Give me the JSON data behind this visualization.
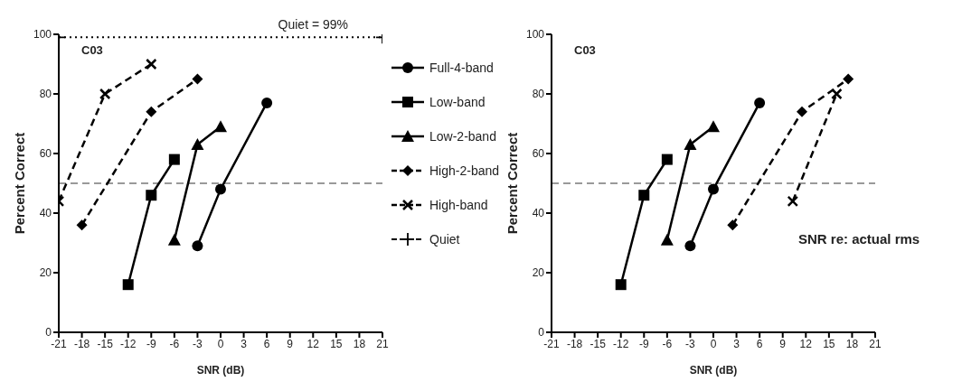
{
  "chart_data": [
    {
      "type": "line",
      "xlabel": "SNR (dB)",
      "ylabel": "Percent Correct",
      "xlim": [
        -21,
        21
      ],
      "xticks": [
        -21,
        -18,
        -15,
        -12,
        -9,
        -6,
        -3,
        0,
        3,
        6,
        9,
        12,
        15,
        18,
        21
      ],
      "ylim": [
        0,
        100
      ],
      "yticks": [
        0,
        20,
        40,
        60,
        80,
        100
      ],
      "legend": "right",
      "annotations": [
        "C03",
        {
          "text": "Quiet = 99%",
          "x": 12,
          "y": 99
        }
      ],
      "ref_lines": [
        {
          "axis": "y",
          "value": 50,
          "line_style": "dashed",
          "color": "#000000"
        }
      ],
      "series": [
        {
          "name": "Full-4-band",
          "color": "#000000",
          "marker": "circle",
          "line_style": "solid",
          "x": [
            -3,
            0,
            6
          ],
          "values": [
            29,
            48,
            77
          ]
        },
        {
          "name": "Low-band",
          "color": "#000000",
          "marker": "square",
          "line_style": "solid",
          "x": [
            -12,
            -9,
            -6
          ],
          "values": [
            16,
            46,
            58
          ]
        },
        {
          "name": "Low-2-band",
          "color": "#000000",
          "marker": "triangle",
          "line_style": "solid",
          "x": [
            -6,
            -3,
            0
          ],
          "values": [
            31,
            63,
            69
          ]
        },
        {
          "name": "High-2-band",
          "color": "#000000",
          "marker": "diamond",
          "line_style": "dashed",
          "x": [
            -18,
            -9,
            -3
          ],
          "values": [
            36,
            74,
            85
          ]
        },
        {
          "name": "High-band",
          "color": "#000000",
          "marker": "cross",
          "line_style": "dashed",
          "x": [
            -21,
            -15,
            -9
          ],
          "values": [
            44,
            80,
            90
          ]
        },
        {
          "name": "Quiet",
          "color": "#000000",
          "marker": "plus",
          "line_style": "dotted",
          "x": [
            -21,
            21
          ],
          "values": [
            99,
            99
          ]
        }
      ]
    },
    {
      "type": "line",
      "xlabel": "SNR (dB)",
      "ylabel": "Percent Correct",
      "xlim": [
        -21,
        21
      ],
      "xticks": [
        -21,
        -18,
        -15,
        -12,
        -9,
        -6,
        -3,
        0,
        3,
        6,
        9,
        12,
        15,
        18,
        21
      ],
      "ylim": [
        0,
        100
      ],
      "yticks": [
        0,
        20,
        40,
        60,
        80,
        100
      ],
      "legend": false,
      "annotations": [
        "C03",
        "SNR re: actual rms"
      ],
      "ref_lines": [
        {
          "axis": "y",
          "value": 50,
          "line_style": "dashed",
          "color": "#000000"
        }
      ],
      "series": [
        {
          "color": "#000000",
          "marker": "circle",
          "line_style": "solid",
          "x": [
            -3,
            0,
            6
          ],
          "values": [
            29,
            48,
            77
          ]
        },
        {
          "color": "#000000",
          "marker": "square",
          "line_style": "solid",
          "x": [
            -12,
            -9,
            -6
          ],
          "values": [
            16,
            46,
            58
          ]
        },
        {
          "color": "#000000",
          "marker": "triangle",
          "line_style": "solid",
          "x": [
            -6,
            -3,
            0
          ],
          "values": [
            31,
            63,
            69
          ]
        },
        {
          "color": "#000000",
          "marker": "diamond",
          "line_style": "dashed",
          "x": [
            2.5,
            11.5,
            17.5
          ],
          "values": [
            36,
            74,
            85
          ]
        },
        {
          "color": "#000000",
          "marker": "cross",
          "line_style": "dashed",
          "x": [
            10.3,
            16
          ],
          "values": [
            44,
            80
          ]
        }
      ]
    }
  ]
}
